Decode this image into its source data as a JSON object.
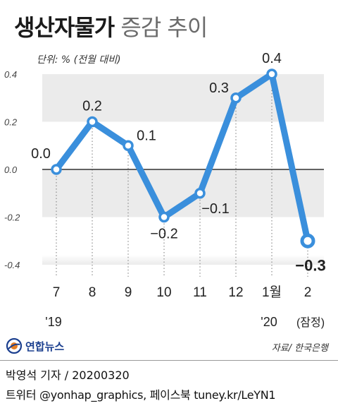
{
  "title_bold": "생산자물가",
  "title_light": "증감 추이",
  "unit_label": "단위: % (전월 대비)",
  "source": "자료/ 한국은행",
  "logo_text": "연합뉴스",
  "credit_line": "박영석 기자 / 20200320",
  "social_line": "트위터 @yonhap_graphics, 페이스북 tuney.kr/LeYN1",
  "colors": {
    "line": "#3a8fdc",
    "band": "#ebebeb",
    "zero_line": "#333333",
    "logo": "#1b3f8f"
  },
  "chart_data": {
    "type": "line",
    "title": "생산자물가 증감 추이",
    "ylabel": "단위: % (전월 대비)",
    "ylim": [
      -0.4,
      0.4
    ],
    "yticks": [
      "0.4",
      "0.2",
      "0.0",
      "-0.2",
      "-0.4"
    ],
    "categories": [
      "7",
      "8",
      "9",
      "10",
      "11",
      "12",
      "1월",
      "2"
    ],
    "year_labels": [
      {
        "at": "7",
        "text": "'19"
      },
      {
        "at": "1월",
        "text": "'20"
      }
    ],
    "category_note": {
      "at": "2",
      "text": "(잠정)"
    },
    "values": [
      0.0,
      0.2,
      0.1,
      -0.2,
      -0.1,
      0.3,
      0.4,
      -0.3
    ],
    "data_labels": [
      "0.0",
      "0.2",
      "0.1",
      "−0.2",
      "−0.1",
      "0.3",
      "0.4",
      "−0.3"
    ],
    "highlight_last": true
  }
}
